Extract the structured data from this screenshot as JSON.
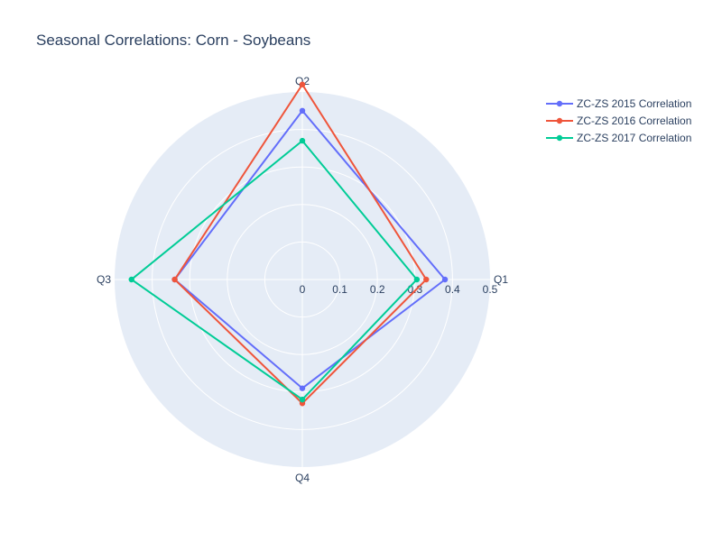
{
  "chart_data": {
    "type": "radar",
    "title": "Seasonal Correlations: Corn - Soybeans",
    "categories": [
      "Q1",
      "Q2",
      "Q3",
      "Q4"
    ],
    "radial_range": [
      0,
      0.5
    ],
    "radial_ticks": [
      "0",
      "0.1",
      "0.2",
      "0.3",
      "0.4",
      "0.5"
    ],
    "grid": true,
    "legend_position": "top-right",
    "series": [
      {
        "name": "ZC-ZS 2015 Correlation",
        "color": "#636efa",
        "values": [
          0.38,
          0.45,
          0.34,
          0.29
        ]
      },
      {
        "name": "ZC-ZS 2016 Correlation",
        "color": "#ef553b",
        "values": [
          0.33,
          0.52,
          0.34,
          0.33
        ]
      },
      {
        "name": "ZC-ZS 2017 Correlation",
        "color": "#00cc96",
        "values": [
          0.305,
          0.37,
          0.455,
          0.32
        ]
      }
    ]
  }
}
